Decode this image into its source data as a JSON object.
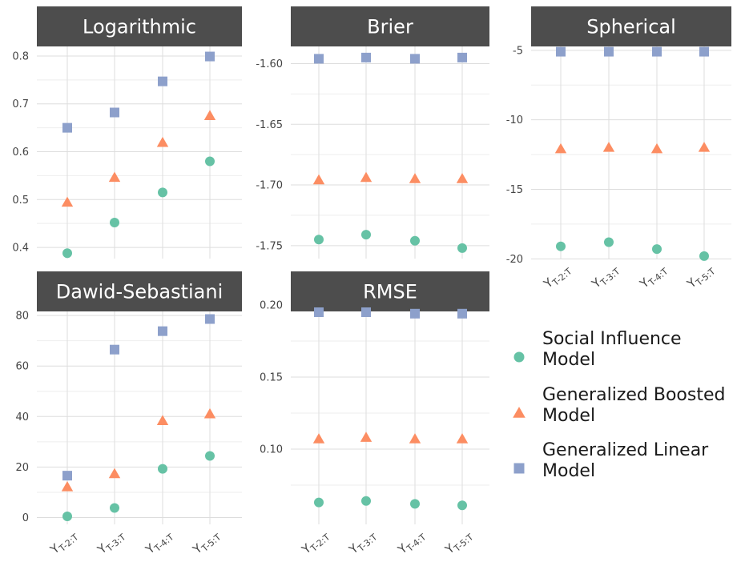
{
  "chart_data": {
    "type": "scatter",
    "categories": [
      "Y_{T-2:T}",
      "Y_{T-3:T}",
      "Y_{T-4:T}",
      "Y_{T-5:T}"
    ],
    "x_tick_labels": [
      {
        "main": "Y",
        "sub": "T-2:T"
      },
      {
        "main": "Y",
        "sub": "T-3:T"
      },
      {
        "main": "Y",
        "sub": "T-4:T"
      },
      {
        "main": "Y",
        "sub": "T-5:T"
      }
    ],
    "legend": {
      "position": "right",
      "entries": [
        {
          "lines": [
            "Social Influence",
            "Model"
          ],
          "shape": "circle",
          "color": "#66c2a5"
        },
        {
          "lines": [
            "Generalized Boosted",
            "Model"
          ],
          "shape": "triangle",
          "color": "#fc8d62"
        },
        {
          "lines": [
            "Generalized Linear",
            "Model"
          ],
          "shape": "square",
          "color": "#8da0cb"
        }
      ]
    },
    "colors": {
      "strip_bg": "#4d4d4d",
      "grid": "#dddddd",
      "strip_text": "#ffffff"
    },
    "panels": [
      {
        "title": "Logarithmic",
        "ylim": [
          0.37,
          0.82
        ],
        "yticks": [
          0.4,
          0.5,
          0.6,
          0.7,
          0.8
        ],
        "ytick_labels": [
          "0.4",
          "0.5",
          "0.6",
          "0.7",
          "0.8"
        ],
        "show_x_ticks": false,
        "series": [
          {
            "name": "Social Influence Model",
            "values": [
              0.388,
              0.452,
              0.515,
              0.58
            ]
          },
          {
            "name": "Generalized Boosted Model",
            "values": [
              0.494,
              0.546,
              0.619,
              0.675
            ]
          },
          {
            "name": "Generalized Linear Model",
            "values": [
              0.65,
              0.682,
              0.747,
              0.799
            ]
          }
        ]
      },
      {
        "title": "Brier",
        "ylim": [
          -1.762,
          -1.57
        ],
        "yticks": [
          -1.75,
          -1.7,
          -1.65,
          -1.6
        ],
        "ytick_labels": [
          "-1.75",
          "-1.70",
          "-1.65",
          "-1.60"
        ],
        "show_x_ticks": false,
        "series": [
          {
            "name": "Social Influence Model",
            "values": [
              -1.745,
              -1.741,
              -1.746,
              -1.752
            ]
          },
          {
            "name": "Generalized Boosted Model",
            "values": [
              -1.696,
              -1.694,
              -1.695,
              -1.695
            ]
          },
          {
            "name": "Generalized Linear Model",
            "values": [
              -1.596,
              -1.595,
              -1.596,
              -1.595
            ]
          }
        ]
      },
      {
        "title": "Spherical",
        "ylim": [
          -20.5,
          -3.8
        ],
        "yticks": [
          -20,
          -15,
          -10,
          -5
        ],
        "ytick_labels": [
          "-20",
          "-15",
          "-10",
          "-5"
        ],
        "show_x_ticks": true,
        "series": [
          {
            "name": "Social Influence Model",
            "values": [
              -19.1,
              -18.8,
              -19.3,
              -19.8
            ]
          },
          {
            "name": "Generalized Boosted Model",
            "values": [
              -12.1,
              -12.0,
              -12.1,
              -12.0
            ]
          },
          {
            "name": "Generalized Linear Model",
            "values": [
              -5.1,
              -5.1,
              -5.1,
              -5.1
            ]
          }
        ]
      },
      {
        "title": "Dawid-Sebastiani",
        "ylim": [
          -3,
          87
        ],
        "yticks": [
          0,
          20,
          40,
          60,
          80
        ],
        "ytick_labels": [
          "0",
          "20",
          "40",
          "60",
          "80"
        ],
        "show_x_ticks": true,
        "series": [
          {
            "name": "Social Influence Model",
            "values": [
              0.5,
              3.8,
              19.3,
              24.4
            ]
          },
          {
            "name": "Generalized Boosted Model",
            "values": [
              12.1,
              17.3,
              38.3,
              41.0
            ]
          },
          {
            "name": "Generalized Linear Model",
            "values": [
              16.6,
              66.5,
              73.8,
              78.6
            ]
          }
        ]
      },
      {
        "title": "RMSE",
        "ylim": [
          0.055,
          0.205
        ],
        "yticks": [
          0.1,
          0.15,
          0.2
        ],
        "ytick_labels": [
          "0.10",
          "0.15",
          "0.20"
        ],
        "show_x_ticks": true,
        "series": [
          {
            "name": "Social Influence Model",
            "values": [
              0.063,
              0.064,
              0.062,
              0.061
            ]
          },
          {
            "name": "Generalized Boosted Model",
            "values": [
              0.107,
              0.108,
              0.107,
              0.107
            ]
          },
          {
            "name": "Generalized Linear Model",
            "values": [
              0.195,
              0.195,
              0.194,
              0.194
            ]
          }
        ]
      }
    ]
  }
}
